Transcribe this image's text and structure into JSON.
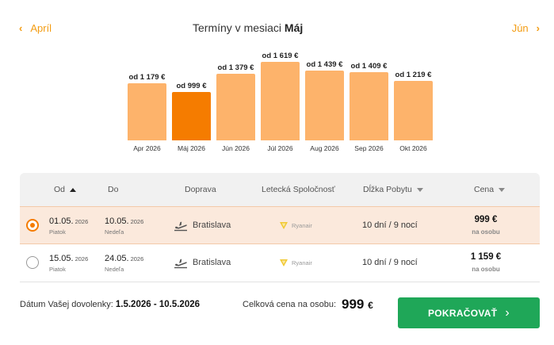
{
  "header": {
    "prev_month": "Apríl",
    "next_month": "Jún",
    "title_prefix": "Termíny v mesiaci",
    "title_month": "Máj"
  },
  "colors": {
    "accent": "#f57c00",
    "bar": "#fdb36b",
    "button": "#1fa758",
    "selected_row": "#fbe9dc"
  },
  "chart_data": {
    "type": "bar",
    "title": "Termíny v mesiaci Máj",
    "categories": [
      "Apr 2026",
      "Máj 2026",
      "Jún 2026",
      "Júl 2026",
      "Aug 2026",
      "Sep 2026",
      "Okt 2026"
    ],
    "values": [
      1179,
      999,
      1379,
      1619,
      1439,
      1409,
      1219
    ],
    "price_labels": [
      "od 1 179 €",
      "od 999 €",
      "od 1 379 €",
      "od 1 619 €",
      "od 1 439 €",
      "od 1 409 €",
      "od 1 219 €"
    ],
    "selected_index": 1,
    "ylim": [
      0,
      1619
    ]
  },
  "table": {
    "columns": {
      "from": "Od",
      "to": "Do",
      "transport": "Doprava",
      "airline": "Letecká Spoločnosť",
      "length": "Dĺžka Pobytu",
      "price": "Cena"
    },
    "rows": [
      {
        "selected": true,
        "from_date": "01.05.",
        "from_year": "2026",
        "from_day": "Piatok",
        "to_date": "10.05.",
        "to_year": "2026",
        "to_day": "Nedeľa",
        "city": "Bratislava",
        "airline": "Ryanair",
        "stay": "10 dní / 9 nocí",
        "price": "999 €",
        "per": "na osobu"
      },
      {
        "selected": false,
        "from_date": "15.05.",
        "from_year": "2026",
        "from_day": "Piatok",
        "to_date": "24.05.",
        "to_year": "2026",
        "to_day": "Nedeľa",
        "city": "Bratislava",
        "airline": "Ryanair",
        "stay": "10 dní / 9 nocí",
        "price": "1 159 €",
        "per": "na osobu"
      }
    ]
  },
  "footer": {
    "dates_label": "Dátum Vašej dovolenky:",
    "dates_value": "1.5.2026 - 10.5.2026",
    "total_label": "Celková cena na osobu:",
    "total_value": "999",
    "total_currency": "€",
    "button_label": "POKRAČOVAŤ"
  }
}
